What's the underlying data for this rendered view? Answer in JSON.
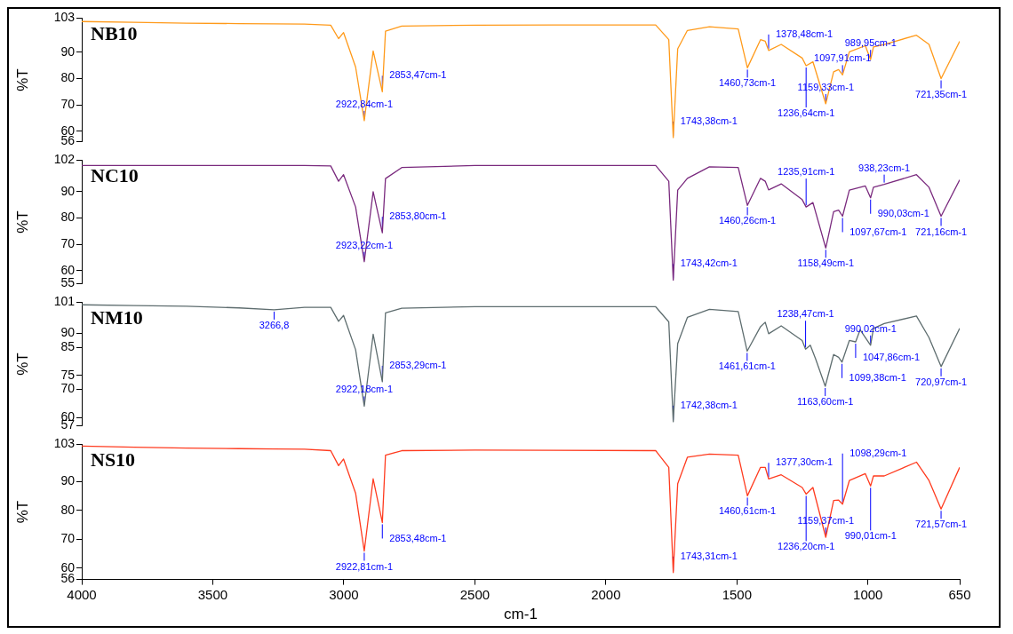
{
  "chart_data": [
    {
      "type": "line",
      "title": "NB10",
      "ylabel": "%T",
      "tick_labels": "y",
      "grid": false,
      "legend": false,
      "x": [
        4000,
        3800,
        3600,
        3400,
        3266,
        3150,
        3050,
        3020,
        3001,
        2955,
        2922,
        2888,
        2853,
        2841,
        2779,
        2500,
        2200,
        1810,
        1760,
        1743,
        1726,
        1689,
        1605,
        1495,
        1460,
        1410,
        1392,
        1379,
        1331,
        1251,
        1236,
        1210,
        1161,
        1131,
        1112,
        1097,
        1071,
        1010,
        990,
        979,
        938,
        815,
        767,
        721,
        650
      ],
      "series": [
        {
          "color": "#ff9a1a",
          "values": [
            101.7,
            101.4,
            101.1,
            100.9,
            100.8,
            100.7,
            100.3,
            95.2,
            97.5,
            84.4,
            64,
            90.5,
            75,
            98,
            100,
            100.3,
            100.4,
            100.4,
            94.8,
            57.6,
            91.3,
            98.3,
            99.7,
            98.9,
            84.1,
            94.8,
            94.2,
            90.7,
            93,
            87.8,
            84.9,
            86.4,
            70.4,
            82.6,
            83.4,
            81.4,
            90.2,
            92.5,
            87.2,
            92,
            93,
            96.5,
            93,
            80,
            94.2
          ]
        }
      ],
      "xlim": [
        4000,
        650
      ],
      "xticks": [
        4000,
        3500,
        3000,
        2500,
        2000,
        1500,
        1000,
        650
      ],
      "ylim": [
        56,
        103
      ],
      "yticks": [
        56,
        60,
        70,
        80,
        90,
        103
      ],
      "annotations": [
        {
          "text": "2922,84cm-1",
          "x": 2922,
          "y": 64
        },
        {
          "text": "2853,47cm-1",
          "x": 2853,
          "y": 75
        },
        {
          "text": "1743,38cm-1",
          "x": 1743,
          "y": 57.6
        },
        {
          "text": "1460,73cm-1",
          "x": 1460,
          "y": 84.1
        },
        {
          "text": "1378,48cm-1",
          "x": 1379,
          "y": 90.7
        },
        {
          "text": "1236,64cm-1",
          "x": 1236,
          "y": 84.9
        },
        {
          "text": "1159,33cm-1",
          "x": 1161,
          "y": 70.4
        },
        {
          "text": "1097,91cm-1",
          "x": 1097,
          "y": 81.4
        },
        {
          "text": "989,95cm-1",
          "x": 990,
          "y": 87.2
        },
        {
          "text": "721,35cm-1",
          "x": 721,
          "y": 80
        }
      ]
    },
    {
      "type": "line",
      "title": "NC10",
      "ylabel": "%T",
      "tick_labels": "y",
      "grid": false,
      "legend": false,
      "x": [
        4000,
        3800,
        3600,
        3400,
        3266,
        3150,
        3050,
        3020,
        3001,
        2955,
        2922,
        2888,
        2853,
        2841,
        2779,
        2500,
        2200,
        1810,
        1760,
        1743,
        1726,
        1689,
        1605,
        1495,
        1460,
        1410,
        1392,
        1379,
        1331,
        1251,
        1236,
        1210,
        1161,
        1131,
        1112,
        1097,
        1071,
        1010,
        990,
        979,
        938,
        815,
        767,
        721,
        650
      ],
      "series": [
        {
          "color": "#7a2a7e",
          "values": [
            100,
            100,
            100,
            100,
            100,
            100,
            99.8,
            94,
            96.5,
            84.2,
            63.4,
            90,
            74.4,
            95,
            99.2,
            100,
            100,
            100,
            94,
            56.4,
            90.6,
            95.1,
            99.5,
            99.2,
            84.8,
            95.1,
            94,
            90.7,
            93,
            87,
            84.2,
            85.9,
            68.6,
            82.4,
            83,
            80.7,
            90.6,
            92.2,
            87.7,
            91.7,
            92.8,
            96.5,
            91.7,
            80.7,
            94.5
          ]
        }
      ],
      "xlim": [
        4000,
        650
      ],
      "xticks": [
        4000,
        3500,
        3000,
        2500,
        2000,
        1500,
        1000,
        650
      ],
      "ylim": [
        55,
        102
      ],
      "yticks": [
        55,
        60,
        70,
        80,
        90,
        102
      ],
      "annotations": [
        {
          "text": "2923,22cm-1",
          "x": 2922,
          "y": 63.4
        },
        {
          "text": "2853,80cm-1",
          "x": 2853,
          "y": 74.4
        },
        {
          "text": "1743,42cm-1",
          "x": 1743,
          "y": 56.4
        },
        {
          "text": "1460,26cm-1",
          "x": 1460,
          "y": 84.8
        },
        {
          "text": "1235,91cm-1",
          "x": 1236,
          "y": 84.2
        },
        {
          "text": "1158,49cm-1",
          "x": 1161,
          "y": 68.6
        },
        {
          "text": "1097,67cm-1",
          "x": 1097,
          "y": 80.7
        },
        {
          "text": "990,03cm-1",
          "x": 990,
          "y": 87.7
        },
        {
          "text": "938,23cm-1",
          "x": 938,
          "y": 92.8
        },
        {
          "text": "721,16cm-1",
          "x": 721,
          "y": 80.7
        }
      ]
    },
    {
      "type": "line",
      "title": "NM10",
      "ylabel": "%T",
      "tick_labels": "y",
      "grid": false,
      "legend": false,
      "x": [
        4000,
        3800,
        3600,
        3400,
        3266,
        3150,
        3050,
        3020,
        3001,
        2955,
        2922,
        2888,
        2853,
        2841,
        2779,
        2500,
        2200,
        1810,
        1760,
        1743,
        1726,
        1689,
        1605,
        1495,
        1461,
        1410,
        1392,
        1379,
        1331,
        1251,
        1238,
        1220,
        1200,
        1163,
        1131,
        1112,
        1099,
        1071,
        1047,
        1030,
        990,
        979,
        938,
        815,
        767,
        721,
        650
      ],
      "series": [
        {
          "color": "#5e6d6f",
          "values": [
            100.1,
            99.8,
            99.6,
            99,
            98.3,
            99.2,
            99.2,
            94.2,
            96.3,
            84.1,
            64,
            89.6,
            72.7,
            97.2,
            98.9,
            99.4,
            99.4,
            99.4,
            94,
            58.5,
            86.3,
            95.6,
            98.5,
            97.7,
            83.6,
            92.3,
            93.9,
            89.8,
            92.6,
            87.4,
            84.3,
            85.7,
            80.9,
            71.1,
            82.4,
            81.4,
            79.7,
            87.4,
            86.9,
            91.2,
            85.7,
            91.7,
            93.4,
            96.1,
            88.4,
            78.1,
            91.7
          ]
        }
      ],
      "xlim": [
        4000,
        650
      ],
      "xticks": [
        4000,
        3500,
        3000,
        2500,
        2000,
        1500,
        1000,
        650
      ],
      "ylim": [
        57,
        101
      ],
      "yticks": [
        57,
        60,
        70,
        75,
        85,
        90,
        101
      ],
      "annotations": [
        {
          "text": "3266,8",
          "x": 3266,
          "y": 98.3
        },
        {
          "text": "2922,18cm-1",
          "x": 2922,
          "y": 64
        },
        {
          "text": "2853,29cm-1",
          "x": 2853,
          "y": 72.7
        },
        {
          "text": "1742,38cm-1",
          "x": 1743,
          "y": 58.5
        },
        {
          "text": "1461,61cm-1",
          "x": 1461,
          "y": 83.6
        },
        {
          "text": "1238,47cm-1",
          "x": 1238,
          "y": 84.3
        },
        {
          "text": "1163,60cm-1",
          "x": 1163,
          "y": 71.1
        },
        {
          "text": "1099,38cm-1",
          "x": 1099,
          "y": 79.7
        },
        {
          "text": "1047,86cm-1",
          "x": 1047,
          "y": 86.9
        },
        {
          "text": "990,02cm-1",
          "x": 990,
          "y": 85.7
        },
        {
          "text": "720,97cm-1",
          "x": 721,
          "y": 78.1
        }
      ]
    },
    {
      "type": "line",
      "title": "NS10",
      "ylabel": "%T",
      "xlabel": "cm-1",
      "grid": false,
      "legend": false,
      "x": [
        4000,
        3800,
        3600,
        3400,
        3266,
        3150,
        3050,
        3020,
        3001,
        2955,
        2922,
        2888,
        2853,
        2841,
        2779,
        2500,
        2200,
        1810,
        1760,
        1743,
        1726,
        1689,
        1605,
        1495,
        1460,
        1410,
        1392,
        1379,
        1331,
        1251,
        1236,
        1210,
        1161,
        1131,
        1112,
        1097,
        1071,
        1010,
        990,
        979,
        938,
        815,
        767,
        721,
        650
      ],
      "series": [
        {
          "color": "#ff3b1f",
          "values": [
            102.4,
            102,
            101.7,
            101.5,
            101.4,
            101.3,
            100.8,
            95.6,
            97.9,
            86,
            65.9,
            91,
            75.8,
            99.2,
            100.8,
            101,
            100.9,
            100.8,
            95,
            58.4,
            89.3,
            98.5,
            99.6,
            99.2,
            85.1,
            95,
            95,
            91,
            92.4,
            88,
            85.7,
            88,
            70.7,
            83.5,
            83.6,
            82.2,
            90.4,
            92.8,
            88.5,
            92,
            92,
            96.8,
            90.4,
            80.5,
            95
          ]
        }
      ],
      "xlim": [
        4000,
        650
      ],
      "xticks": [
        4000,
        3500,
        3000,
        2500,
        2000,
        1500,
        1000,
        650
      ],
      "ylim": [
        56,
        103
      ],
      "yticks": [
        56,
        60,
        70,
        80,
        90,
        103
      ],
      "annotations": [
        {
          "text": "2922,81cm-1",
          "x": 2922,
          "y": 65.9
        },
        {
          "text": "2853,48cm-1",
          "x": 2853,
          "y": 75.8
        },
        {
          "text": "1743,31cm-1",
          "x": 1743,
          "y": 58.4
        },
        {
          "text": "1460,61cm-1",
          "x": 1460,
          "y": 85.1
        },
        {
          "text": "1377,30cm-1",
          "x": 1379,
          "y": 91
        },
        {
          "text": "1236,20cm-1",
          "x": 1236,
          "y": 85.7
        },
        {
          "text": "1159,37cm-1",
          "x": 1161,
          "y": 70.7
        },
        {
          "text": "1098,29cm-1",
          "x": 1097,
          "y": 82.2
        },
        {
          "text": "990,01cm-1",
          "x": 990,
          "y": 88.5
        },
        {
          "text": "721,57cm-1",
          "x": 721,
          "y": 80.5
        }
      ]
    }
  ]
}
